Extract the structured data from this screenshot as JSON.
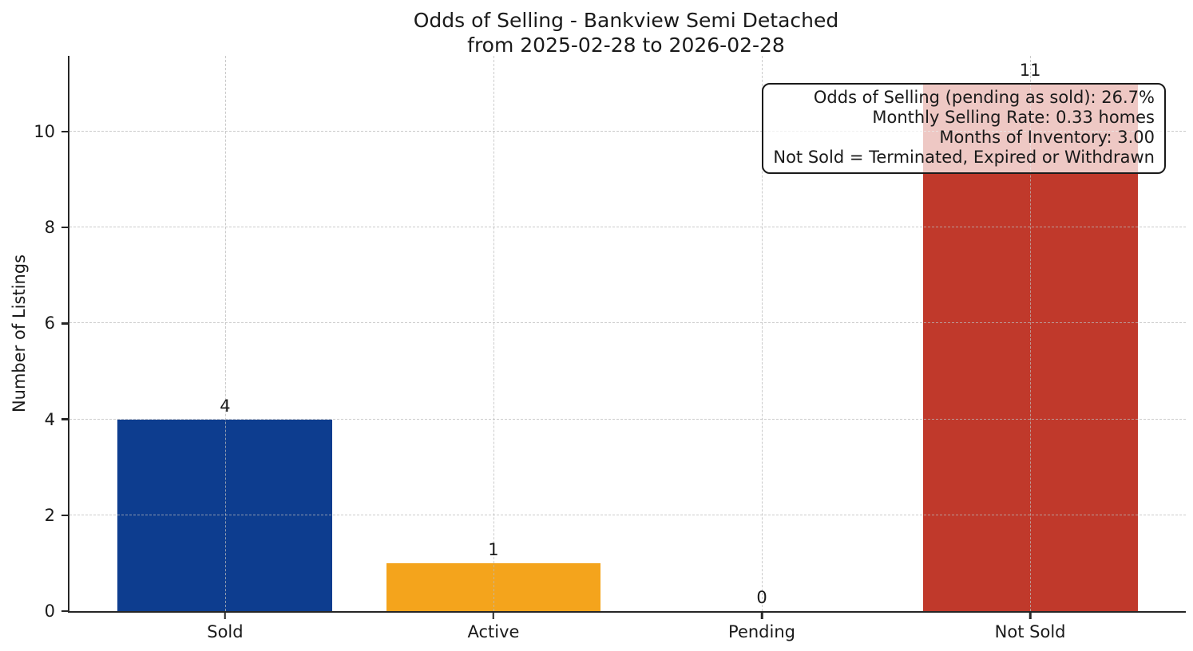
{
  "chart_data": {
    "type": "bar",
    "title": "Odds of Selling - Bankview Semi Detached",
    "subtitle": "from 2025-02-28 to 2026-02-28",
    "categories": [
      "Sold",
      "Active",
      "Pending",
      "Not Sold"
    ],
    "values": [
      4,
      1,
      0,
      11
    ],
    "bar_labels": [
      "4",
      "1",
      "0",
      "11"
    ],
    "bar_colors": [
      "#0d3d8f",
      "#f4a41c",
      null,
      "#c0392b"
    ],
    "xlabel": "",
    "ylabel": "Number of Listings",
    "yticks": [
      0,
      2,
      4,
      6,
      8,
      10
    ],
    "ylim": [
      0,
      11.58
    ],
    "legend": "none",
    "grid": {
      "style": "dashed",
      "axes": "both",
      "color": "#b9b9b9",
      "drawn_over_bars": true
    },
    "spine_color": "#262626",
    "annotation": {
      "position": "top-right",
      "align": "right",
      "lines": [
        "Odds of Selling (pending as sold): 26.7%",
        "Monthly Selling Rate: 0.33 homes",
        "Months of Inventory: 3.00",
        "Not Sold = Terminated, Expired or Withdrawn"
      ]
    }
  }
}
